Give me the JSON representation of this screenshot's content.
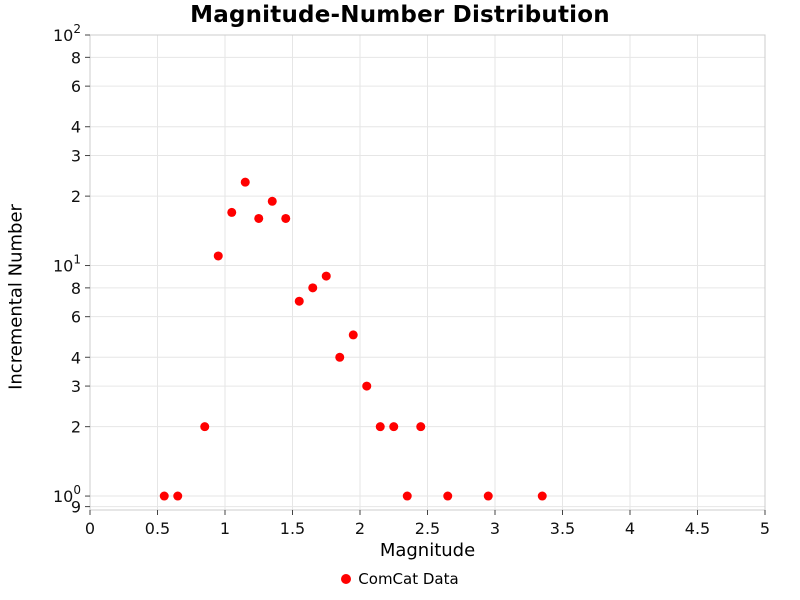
{
  "chart_data": {
    "type": "scatter",
    "title": "Magnitude-Number Distribution",
    "xlabel": "Magnitude",
    "ylabel": "Incremental Number",
    "x_scale": "linear",
    "y_scale": "log",
    "xlim": [
      0,
      5
    ],
    "ylim": [
      0.87,
      100
    ],
    "grid": true,
    "legend_position": "bottom",
    "x_ticks": [
      0,
      0.5,
      1,
      1.5,
      2,
      2.5,
      3,
      3.5,
      4,
      4.5,
      5
    ],
    "x_tick_labels": [
      "0",
      "0.5",
      "1",
      "1.5",
      "2",
      "2.5",
      "3",
      "3.5",
      "4",
      "4.5",
      "5"
    ],
    "y_ticks": [
      {
        "v": 100,
        "label": "10",
        "exp": "2"
      },
      {
        "v": 80,
        "label": "8"
      },
      {
        "v": 60,
        "label": "6"
      },
      {
        "v": 40,
        "label": "4"
      },
      {
        "v": 30,
        "label": "3"
      },
      {
        "v": 20,
        "label": "2"
      },
      {
        "v": 10,
        "label": "10",
        "exp": "1"
      },
      {
        "v": 8,
        "label": "8"
      },
      {
        "v": 6,
        "label": "6"
      },
      {
        "v": 4,
        "label": "4"
      },
      {
        "v": 3,
        "label": "3"
      },
      {
        "v": 2,
        "label": "2"
      },
      {
        "v": 1,
        "label": "10",
        "exp": "0"
      },
      {
        "v": 0.9,
        "label": "9"
      }
    ],
    "series": [
      {
        "name": "ComCat Data",
        "color": "#ff0000",
        "x": [
          0.55,
          0.65,
          0.85,
          0.95,
          1.05,
          1.15,
          1.25,
          1.35,
          1.45,
          1.55,
          1.65,
          1.75,
          1.85,
          1.95,
          2.05,
          2.15,
          2.25,
          2.35,
          2.45,
          2.65,
          2.95,
          3.35
        ],
        "y": [
          1,
          1,
          2,
          11,
          17,
          23,
          16,
          19,
          16,
          7,
          8,
          9,
          4,
          5,
          3,
          2,
          2,
          1,
          2,
          1,
          1,
          1
        ]
      }
    ],
    "style": {
      "grid_color": "#e6e6e6",
      "border_color": "#cccccc",
      "tick_color": "#444444",
      "text_color": "#111111",
      "marker_color": "#ff0000"
    }
  }
}
